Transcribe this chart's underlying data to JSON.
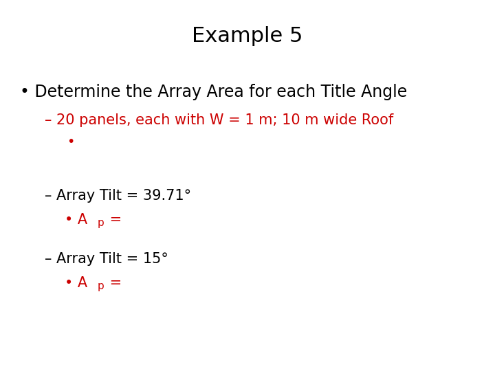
{
  "title": "Example 5",
  "title_fontsize": 22,
  "title_color": "#000000",
  "background_color": "#ffffff",
  "bullet1_text": "• Determine the Array Area for each Title Angle",
  "bullet1_color": "#000000",
  "bullet1_fontsize": 17,
  "sub1_text": "– 20 panels, each with W = 1 m; 10 m wide Roof",
  "sub1_color": "#cc0000",
  "sub1_fontsize": 15,
  "sub1b_bullet": "•",
  "sub1b_color": "#cc0000",
  "sub1b_fontsize": 14,
  "sub2_text": "– Array Tilt = 39.71°",
  "sub2_color": "#000000",
  "sub2_fontsize": 15,
  "sub2b_color": "#cc0000",
  "sub2b_fontsize": 15,
  "sub3_text": "– Array Tilt = 15°",
  "sub3_color": "#000000",
  "sub3_fontsize": 15,
  "sub3b_color": "#cc0000",
  "sub3b_fontsize": 15,
  "fig_width": 7.2,
  "fig_height": 5.4,
  "dpi": 100
}
